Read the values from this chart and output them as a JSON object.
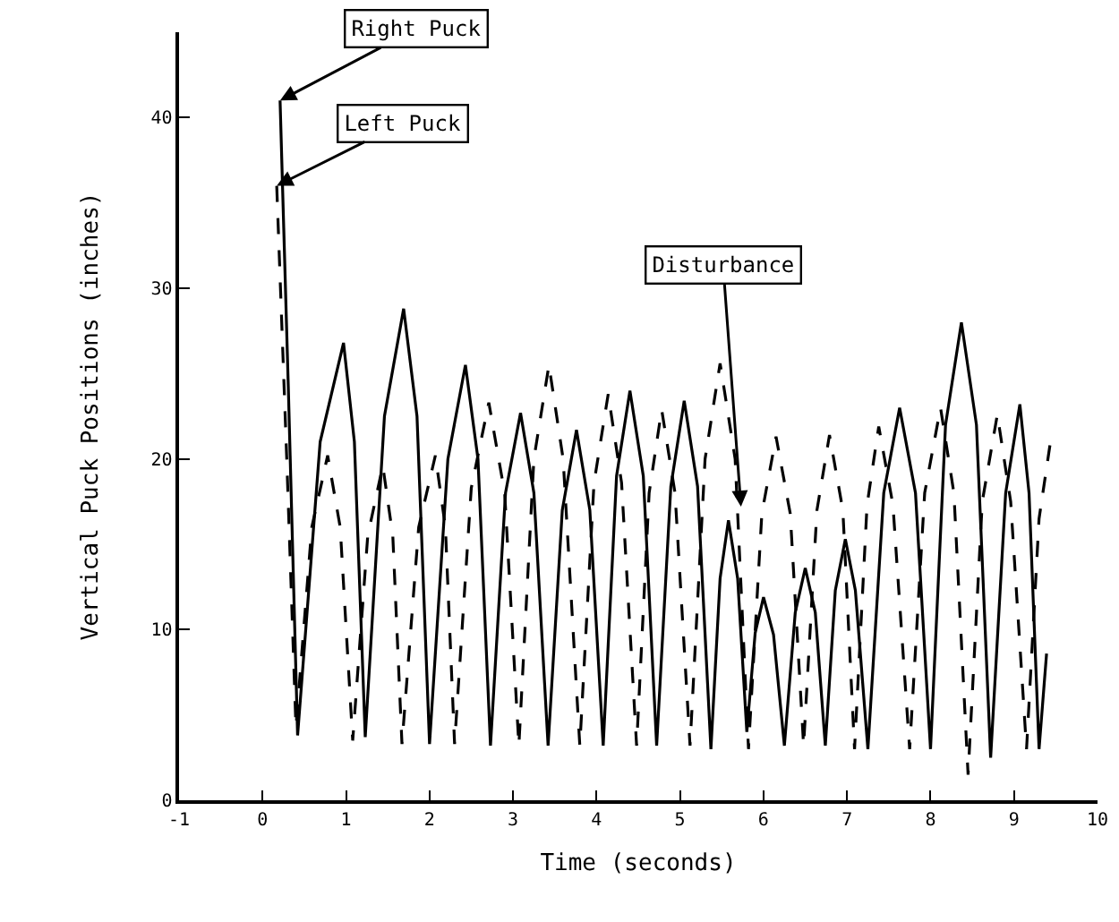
{
  "chart_data": {
    "type": "line",
    "xlabel": "Time (seconds)",
    "ylabel": "Vertical Puck Positions (inches)",
    "xlim": [
      -1,
      10
    ],
    "xticks": [
      -1,
      0,
      1,
      2,
      3,
      4,
      5,
      6,
      7,
      8,
      9,
      10
    ],
    "ylim": [
      0,
      45
    ],
    "yticks": [
      0,
      10,
      20,
      30,
      40
    ],
    "marker": "none",
    "series": [
      {
        "color": "#000000",
        "line_style": "solid",
        "x": [
          0.21,
          0.31,
          0.42,
          0.69,
          0.97,
          1.1,
          1.23,
          1.46,
          1.69,
          1.85,
          2.0,
          2.22,
          2.43,
          2.58,
          2.73,
          2.91,
          3.09,
          3.25,
          3.42,
          3.59,
          3.76,
          3.92,
          4.08,
          4.24,
          4.4,
          4.56,
          4.72,
          4.89,
          5.05,
          5.21,
          5.37,
          5.48,
          5.58,
          5.69,
          5.8,
          5.9,
          6.0,
          6.12,
          6.25,
          6.38,
          6.5,
          6.62,
          6.74,
          6.86,
          6.98,
          7.1,
          7.25,
          7.44,
          7.63,
          7.82,
          8.0,
          8.18,
          8.37,
          8.55,
          8.72,
          8.9,
          9.07,
          9.18,
          9.3,
          9.39
        ],
        "values": [
          41,
          24,
          3.8,
          21,
          26.8,
          21,
          3.7,
          22.5,
          28.8,
          22.5,
          3.3,
          20,
          25.5,
          20,
          3.2,
          18,
          22.7,
          18,
          3.2,
          17,
          21.7,
          17,
          3.2,
          19,
          24,
          19,
          3.2,
          18.4,
          23.4,
          18.4,
          3,
          13,
          16.4,
          13,
          4,
          9.8,
          11.9,
          9.7,
          3.2,
          11,
          13.6,
          11,
          3.2,
          12.3,
          15.3,
          12.3,
          3,
          18,
          23,
          18,
          3,
          22,
          28,
          22,
          2.5,
          18,
          23.2,
          18,
          3,
          8.6
        ]
      },
      {
        "color": "#000000",
        "line_style": "dashed",
        "x": [
          0.17,
          0.29,
          0.4,
          0.59,
          0.78,
          0.93,
          1.08,
          1.26,
          1.44,
          1.56,
          1.67,
          1.87,
          2.07,
          2.19,
          2.3,
          2.5,
          2.71,
          2.9,
          3.07,
          3.25,
          3.43,
          3.6,
          3.8,
          3.97,
          4.14,
          4.3,
          4.48,
          4.63,
          4.78,
          4.94,
          5.12,
          5.3,
          5.48,
          5.66,
          5.82,
          5.98,
          6.15,
          6.32,
          6.48,
          6.64,
          6.79,
          6.95,
          7.09,
          7.24,
          7.38,
          7.55,
          7.75,
          7.93,
          8.12,
          8.28,
          8.45,
          8.62,
          8.8,
          8.96,
          9.15,
          9.3,
          9.43
        ],
        "values": [
          36,
          20,
          4.3,
          16,
          20.2,
          16,
          3.5,
          15.5,
          19.6,
          15.5,
          3.3,
          16,
          20.2,
          16,
          3.3,
          18.3,
          23.3,
          18,
          3.2,
          20,
          25.5,
          20,
          3.2,
          18.6,
          23.8,
          18.6,
          3.2,
          18,
          22.9,
          18,
          3.2,
          20,
          25.6,
          20,
          3,
          16.8,
          21.3,
          16.8,
          3.2,
          17,
          21.4,
          17,
          3,
          17.3,
          21.9,
          17.3,
          3,
          18,
          23,
          18,
          1.5,
          17.5,
          22.6,
          17.5,
          3,
          16.5,
          20.8
        ]
      }
    ],
    "annotations": [
      {
        "text": "Right Puck",
        "x": 0.21,
        "y": 41
      },
      {
        "text": "Left Puck",
        "x": 0.17,
        "y": 36
      },
      {
        "text": "Disturbance",
        "x": 5.73,
        "y": 17.2
      }
    ]
  }
}
